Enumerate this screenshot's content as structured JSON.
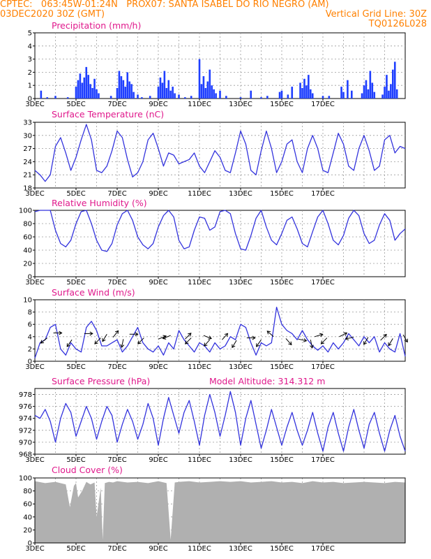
{
  "header": {
    "line1_left": "CPTEC:   063:45W-01:24N   PROX07: SANTA ISABEL DO RIO NEGRO (AM)",
    "line2_left": "03DEC2020 30Z (GMT)",
    "line2_right": "Vertical Grid Line: 30Z",
    "line3_right": "TQ0126L028"
  },
  "x_tick_labels": [
    "3DEC",
    "5DEC",
    "7DEC",
    "9DEC",
    "11DEC",
    "13DEC",
    "15DEC",
    "17DEC"
  ],
  "colors": {
    "header": "#ff8000",
    "title": "#e0198c",
    "line": "#3333dd",
    "bars": "#1f3fff",
    "cloud": "#b0b0b0"
  },
  "chart_data": [
    {
      "type": "bar",
      "title": "Precipitation (mm/h)",
      "ylim": [
        0,
        5
      ],
      "yticks": [
        0,
        1,
        2,
        3,
        4,
        5
      ],
      "x_unit": "days since 3DEC 30Z",
      "x": [
        0.3,
        0.6,
        1.0,
        1.6,
        2.0,
        2.1,
        2.2,
        2.3,
        2.4,
        2.5,
        2.6,
        2.7,
        2.8,
        2.9,
        3.0,
        3.1,
        3.7,
        4.0,
        4.1,
        4.2,
        4.3,
        4.4,
        4.5,
        4.6,
        4.7,
        4.8,
        5.0,
        5.2,
        5.6,
        6.0,
        6.1,
        6.2,
        6.3,
        6.4,
        6.5,
        6.6,
        6.7,
        6.8,
        7.0,
        7.3,
        7.6,
        8.0,
        8.1,
        8.2,
        8.3,
        8.4,
        8.5,
        8.6,
        8.7,
        8.8,
        9.0,
        9.3,
        10.0,
        10.5,
        11.0,
        11.3,
        11.9,
        12.0,
        12.3,
        12.5,
        12.9,
        13.0,
        13.1,
        13.2,
        13.3,
        13.4,
        13.5,
        14.0,
        14.3,
        14.9,
        15.0,
        15.2,
        15.4,
        15.9,
        16.0,
        16.1,
        16.2,
        16.3,
        16.4,
        16.5,
        16.9,
        17.0,
        17.1,
        17.2,
        17.3,
        17.4,
        17.5,
        17.6
      ],
      "values": [
        0.6,
        0.1,
        0.2,
        0.1,
        0.9,
        1.4,
        1.9,
        1.2,
        1.6,
        2.4,
        1.8,
        1.1,
        0.8,
        1.5,
        0.7,
        0.4,
        0.2,
        0.8,
        2.1,
        1.7,
        1.4,
        0.9,
        2.0,
        1.3,
        1.1,
        0.5,
        0.3,
        0.1,
        0.2,
        0.9,
        1.6,
        1.2,
        2.1,
        0.8,
        1.4,
        0.6,
        0.9,
        0.4,
        0.3,
        0.1,
        0.2,
        3.0,
        1.1,
        1.7,
        0.8,
        1.3,
        2.2,
        1.0,
        0.7,
        0.4,
        0.6,
        0.2,
        0.1,
        0.6,
        0.1,
        0.2,
        0.5,
        0.6,
        0.3,
        0.9,
        1.2,
        0.8,
        1.5,
        1.0,
        1.8,
        0.7,
        0.4,
        0.2,
        0.2,
        0.9,
        0.5,
        1.4,
        0.6,
        0.4,
        1.0,
        1.4,
        0.7,
        2.1,
        1.2,
        0.5,
        0.3,
        0.9,
        1.8,
        0.6,
        1.1,
        2.2,
        2.8,
        0.7
      ]
    },
    {
      "type": "line",
      "title": "Surface Temperature (nC)",
      "ylim": [
        18,
        33
      ],
      "yticks": [
        18,
        21,
        24,
        27,
        30,
        33
      ],
      "x_unit": "days since 3DEC 30Z",
      "x": [
        0,
        0.25,
        0.5,
        0.75,
        1,
        1.25,
        1.5,
        1.75,
        2,
        2.25,
        2.5,
        2.75,
        3,
        3.25,
        3.5,
        3.75,
        4,
        4.25,
        4.5,
        4.75,
        5,
        5.25,
        5.5,
        5.75,
        6,
        6.25,
        6.5,
        6.75,
        7,
        7.25,
        7.5,
        7.75,
        8,
        8.25,
        8.5,
        8.75,
        9,
        9.25,
        9.5,
        9.75,
        10,
        10.25,
        10.5,
        10.75,
        11,
        11.25,
        11.5,
        11.75,
        12,
        12.25,
        12.5,
        12.75,
        13,
        13.25,
        13.5,
        13.75,
        14,
        14.25,
        14.5,
        14.75,
        15,
        15.25,
        15.5,
        15.75,
        16,
        16.25,
        16.5,
        16.75,
        17,
        17.25,
        17.5,
        17.75,
        18
      ],
      "y": [
        22.0,
        21.0,
        19.5,
        21.0,
        27.5,
        29.5,
        26.0,
        22.0,
        25.0,
        29.0,
        32.5,
        29.0,
        22.0,
        21.5,
        23.0,
        26.5,
        31.0,
        29.5,
        24.5,
        20.5,
        21.5,
        24.0,
        29.0,
        30.5,
        27.0,
        23.0,
        26.0,
        25.5,
        23.5,
        24.0,
        24.5,
        26.0,
        23.0,
        21.5,
        24.0,
        26.5,
        25.0,
        22.0,
        21.5,
        26.0,
        31.0,
        28.0,
        22.0,
        21.0,
        26.5,
        31.0,
        27.0,
        21.5,
        24.0,
        28.0,
        29.0,
        24.0,
        21.5,
        27.0,
        30.0,
        27.0,
        22.0,
        21.5,
        26.0,
        30.5,
        28.0,
        23.0,
        22.0,
        27.0,
        30.0,
        26.5,
        22.0,
        23.0,
        29.0,
        30.0,
        26.0,
        27.5,
        27.0
      ]
    },
    {
      "type": "line",
      "title": "Relative Humidity (%)",
      "ylim": [
        0,
        100
      ],
      "yticks": [
        0,
        20,
        40,
        60,
        80,
        100
      ],
      "x_unit": "days since 3DEC 30Z",
      "x": [
        0,
        0.25,
        0.5,
        0.75,
        1,
        1.25,
        1.5,
        1.75,
        2,
        2.25,
        2.5,
        2.75,
        3,
        3.25,
        3.5,
        3.75,
        4,
        4.25,
        4.5,
        4.75,
        5,
        5.25,
        5.5,
        5.75,
        6,
        6.25,
        6.5,
        6.75,
        7,
        7.25,
        7.5,
        7.75,
        8,
        8.25,
        8.5,
        8.75,
        9,
        9.25,
        9.5,
        9.75,
        10,
        10.25,
        10.5,
        10.75,
        11,
        11.25,
        11.5,
        11.75,
        12,
        12.25,
        12.5,
        12.75,
        13,
        13.25,
        13.5,
        13.75,
        14,
        14.25,
        14.5,
        14.75,
        15,
        15.25,
        15.5,
        15.75,
        16,
        16.25,
        16.5,
        16.75,
        17,
        17.25,
        17.5,
        17.75,
        18
      ],
      "y": [
        98,
        100,
        100,
        100,
        70,
        50,
        45,
        55,
        80,
        98,
        100,
        80,
        55,
        40,
        38,
        50,
        78,
        95,
        100,
        85,
        60,
        48,
        42,
        50,
        75,
        92,
        100,
        90,
        55,
        42,
        45,
        70,
        90,
        88,
        70,
        75,
        98,
        100,
        95,
        65,
        42,
        40,
        62,
        88,
        100,
        75,
        55,
        48,
        65,
        85,
        90,
        72,
        50,
        45,
        68,
        90,
        100,
        80,
        55,
        48,
        62,
        88,
        100,
        92,
        65,
        50,
        55,
        78,
        95,
        85,
        55,
        65,
        72
      ]
    },
    {
      "type": "line",
      "title": "Surface Wind (m/s)",
      "ylim": [
        0,
        10
      ],
      "yticks": [
        0,
        2,
        4,
        6,
        8,
        10
      ],
      "x_unit": "days since 3DEC 30Z",
      "x": [
        0,
        0.25,
        0.5,
        0.75,
        1,
        1.25,
        1.5,
        1.75,
        2,
        2.25,
        2.5,
        2.75,
        3,
        3.25,
        3.5,
        3.75,
        4,
        4.25,
        4.5,
        4.75,
        5,
        5.25,
        5.5,
        5.75,
        6,
        6.25,
        6.5,
        6.75,
        7,
        7.25,
        7.5,
        7.75,
        8,
        8.25,
        8.5,
        8.75,
        9,
        9.25,
        9.5,
        9.75,
        10,
        10.25,
        10.5,
        10.75,
        11,
        11.25,
        11.5,
        11.75,
        12,
        12.25,
        12.5,
        12.75,
        13,
        13.25,
        13.5,
        13.75,
        14,
        14.25,
        14.5,
        14.75,
        15,
        15.25,
        15.5,
        15.75,
        16,
        16.25,
        16.5,
        16.75,
        17,
        17.25,
        17.5,
        17.75,
        18
      ],
      "y": [
        0.5,
        3.0,
        3.5,
        5.5,
        6.0,
        2.0,
        1.0,
        3.0,
        2.0,
        1.5,
        5.5,
        6.5,
        5.0,
        2.5,
        2.5,
        3.0,
        3.5,
        1.5,
        2.5,
        4.0,
        5.5,
        3.0,
        2.0,
        1.5,
        2.5,
        1.0,
        3.0,
        2.0,
        5.0,
        3.5,
        2.5,
        1.5,
        3.0,
        2.5,
        1.5,
        3.0,
        2.0,
        2.5,
        4.0,
        3.5,
        6.0,
        5.5,
        3.0,
        1.0,
        3.0,
        2.5,
        3.0,
        8.8,
        6.0,
        5.0,
        4.5,
        3.5,
        5.0,
        3.5,
        2.5,
        1.8,
        2.5,
        1.5,
        3.0,
        2.0,
        3.0,
        4.5,
        3.5,
        2.5,
        4.0,
        3.0,
        4.0,
        1.5,
        3.0,
        2.0,
        1.5,
        4.5,
        0.8
      ],
      "arrows": [
        {
          "x": 0.6,
          "y": 3.8,
          "dx": -1,
          "dy": -0.8
        },
        {
          "x": 0.9,
          "y": 4.6,
          "dx": 1,
          "dy": 0
        },
        {
          "x": 1.8,
          "y": 3.5,
          "dx": -0.7,
          "dy": -1
        },
        {
          "x": 2.4,
          "y": 4.5,
          "dx": 1,
          "dy": 0
        },
        {
          "x": 3.2,
          "y": 3.8,
          "dx": -0.9,
          "dy": -0.9
        },
        {
          "x": 3.5,
          "y": 4.4,
          "dx": -0.6,
          "dy": -1
        },
        {
          "x": 3.8,
          "y": 3.9,
          "dx": 0.8,
          "dy": 1
        },
        {
          "x": 4.3,
          "y": 3.6,
          "dx": -0.2,
          "dy": -1
        },
        {
          "x": 4.6,
          "y": 4.4,
          "dx": 1,
          "dy": 0
        },
        {
          "x": 5.3,
          "y": 3.8,
          "dx": -0.8,
          "dy": -0.8
        },
        {
          "x": 6.0,
          "y": 3.6,
          "dx": 1,
          "dy": 0.4
        },
        {
          "x": 6.6,
          "y": 4.2,
          "dx": -1,
          "dy": -0.4
        },
        {
          "x": 7.3,
          "y": 3.6,
          "dx": 0.9,
          "dy": 0.9
        },
        {
          "x": 7.6,
          "y": 3.8,
          "dx": -0.9,
          "dy": -0.9
        },
        {
          "x": 8.2,
          "y": 4.2,
          "dx": 1,
          "dy": -0.4
        },
        {
          "x": 8.5,
          "y": 3.5,
          "dx": -0.8,
          "dy": -0.9
        },
        {
          "x": 9.1,
          "y": 3.5,
          "dx": 0.9,
          "dy": 1
        },
        {
          "x": 9.8,
          "y": 3.4,
          "dx": -0.6,
          "dy": -1
        },
        {
          "x": 10.3,
          "y": 3.8,
          "dx": 1,
          "dy": 0
        },
        {
          "x": 11.0,
          "y": 3.5,
          "dx": -0.7,
          "dy": -1
        },
        {
          "x": 11.6,
          "y": 4.0,
          "dx": -0.9,
          "dy": 0.8
        },
        {
          "x": 12.2,
          "y": 3.7,
          "dx": 0.8,
          "dy": -0.9
        },
        {
          "x": 12.8,
          "y": 3.6,
          "dx": 1,
          "dy": -0.2
        },
        {
          "x": 13.4,
          "y": 3.5,
          "dx": 0.2,
          "dy": -1
        },
        {
          "x": 13.6,
          "y": 4.0,
          "dx": 1,
          "dy": 0.3
        },
        {
          "x": 14.2,
          "y": 3.8,
          "dx": -0.8,
          "dy": -0.8
        },
        {
          "x": 14.8,
          "y": 4.0,
          "dx": 1,
          "dy": 0.5
        },
        {
          "x": 15.5,
          "y": 3.9,
          "dx": -1,
          "dy": -0.2
        },
        {
          "x": 16.2,
          "y": 3.9,
          "dx": -0.6,
          "dy": -1
        },
        {
          "x": 16.8,
          "y": 3.4,
          "dx": 0.8,
          "dy": 0.8
        },
        {
          "x": 17.4,
          "y": 3.7,
          "dx": -0.6,
          "dy": -1
        },
        {
          "x": 17.9,
          "y": 4.3,
          "dx": 0.6,
          "dy": -1
        }
      ]
    },
    {
      "type": "line",
      "title": "Surface Pressure (hPa)",
      "annotation": "Model Altitude: 314.312 m",
      "ylim": [
        968,
        979
      ],
      "yticks": [
        968,
        970,
        972,
        974,
        976,
        978
      ],
      "x_unit": "days since 3DEC 30Z",
      "x": [
        0,
        0.25,
        0.5,
        0.75,
        1,
        1.25,
        1.5,
        1.75,
        2,
        2.25,
        2.5,
        2.75,
        3,
        3.25,
        3.5,
        3.75,
        4,
        4.25,
        4.5,
        4.75,
        5,
        5.25,
        5.5,
        5.75,
        6,
        6.25,
        6.5,
        6.75,
        7,
        7.25,
        7.5,
        7.75,
        8,
        8.25,
        8.5,
        8.75,
        9,
        9.25,
        9.5,
        9.75,
        10,
        10.25,
        10.5,
        10.75,
        11,
        11.25,
        11.5,
        11.75,
        12,
        12.25,
        12.5,
        12.75,
        13,
        13.25,
        13.5,
        13.75,
        14,
        14.25,
        14.5,
        14.75,
        15,
        15.25,
        15.5,
        15.75,
        16,
        16.25,
        16.5,
        16.75,
        17,
        17.25,
        17.5,
        17.75,
        18
      ],
      "y": [
        974.5,
        974.0,
        975.5,
        973.5,
        970.0,
        974.0,
        976.5,
        975.0,
        971.0,
        973.5,
        976.0,
        974.0,
        970.5,
        973.5,
        976.0,
        974.5,
        970.0,
        973.0,
        975.5,
        973.5,
        970.5,
        973.0,
        976.5,
        974.0,
        969.5,
        974.0,
        977.5,
        974.5,
        971.5,
        975.0,
        977.0,
        973.5,
        969.5,
        974.5,
        978.0,
        975.0,
        971.0,
        974.5,
        978.5,
        975.0,
        969.5,
        974.0,
        977.0,
        973.0,
        969.0,
        972.0,
        975.5,
        972.5,
        969.5,
        972.5,
        975.0,
        972.0,
        969.5,
        972.0,
        975.0,
        971.5,
        968.5,
        972.5,
        975.0,
        971.5,
        968.5,
        972.5,
        975.5,
        972.0,
        969.0,
        973.0,
        975.0,
        971.5,
        968.5,
        972.0,
        974.5,
        971.0,
        968.5
      ]
    },
    {
      "type": "area",
      "title": "Cloud Cover (%)",
      "ylim": [
        0,
        100
      ],
      "yticks": [
        0,
        20,
        40,
        60,
        80,
        100
      ],
      "x_unit": "days since 3DEC 30Z",
      "x": [
        0,
        0.5,
        1,
        1.5,
        1.7,
        1.9,
        2.0,
        2.1,
        2.3,
        2.5,
        2.7,
        2.9,
        3.0,
        3.2,
        3.3,
        3.4,
        3.6,
        3.8,
        4.0,
        4.5,
        5.0,
        5.5,
        6.0,
        6.4,
        6.6,
        6.8,
        7.0,
        7.5,
        8.0,
        8.5,
        9.0,
        9.5,
        10.0,
        10.5,
        11.0,
        11.5,
        12.0,
        12.5,
        13.0,
        13.5,
        14.0,
        14.5,
        15.0,
        15.5,
        16.0,
        16.5,
        17.0,
        17.5,
        18.0
      ],
      "y": [
        95,
        92,
        94,
        90,
        55,
        88,
        92,
        70,
        80,
        94,
        90,
        93,
        40,
        85,
        5,
        92,
        94,
        93,
        95,
        93,
        94,
        92,
        95,
        92,
        5,
        93,
        94,
        95,
        93,
        94,
        95,
        94,
        95,
        93,
        94,
        95,
        93,
        94,
        92,
        95,
        93,
        94,
        92,
        93,
        94,
        93,
        92,
        94,
        93
      ]
    }
  ]
}
